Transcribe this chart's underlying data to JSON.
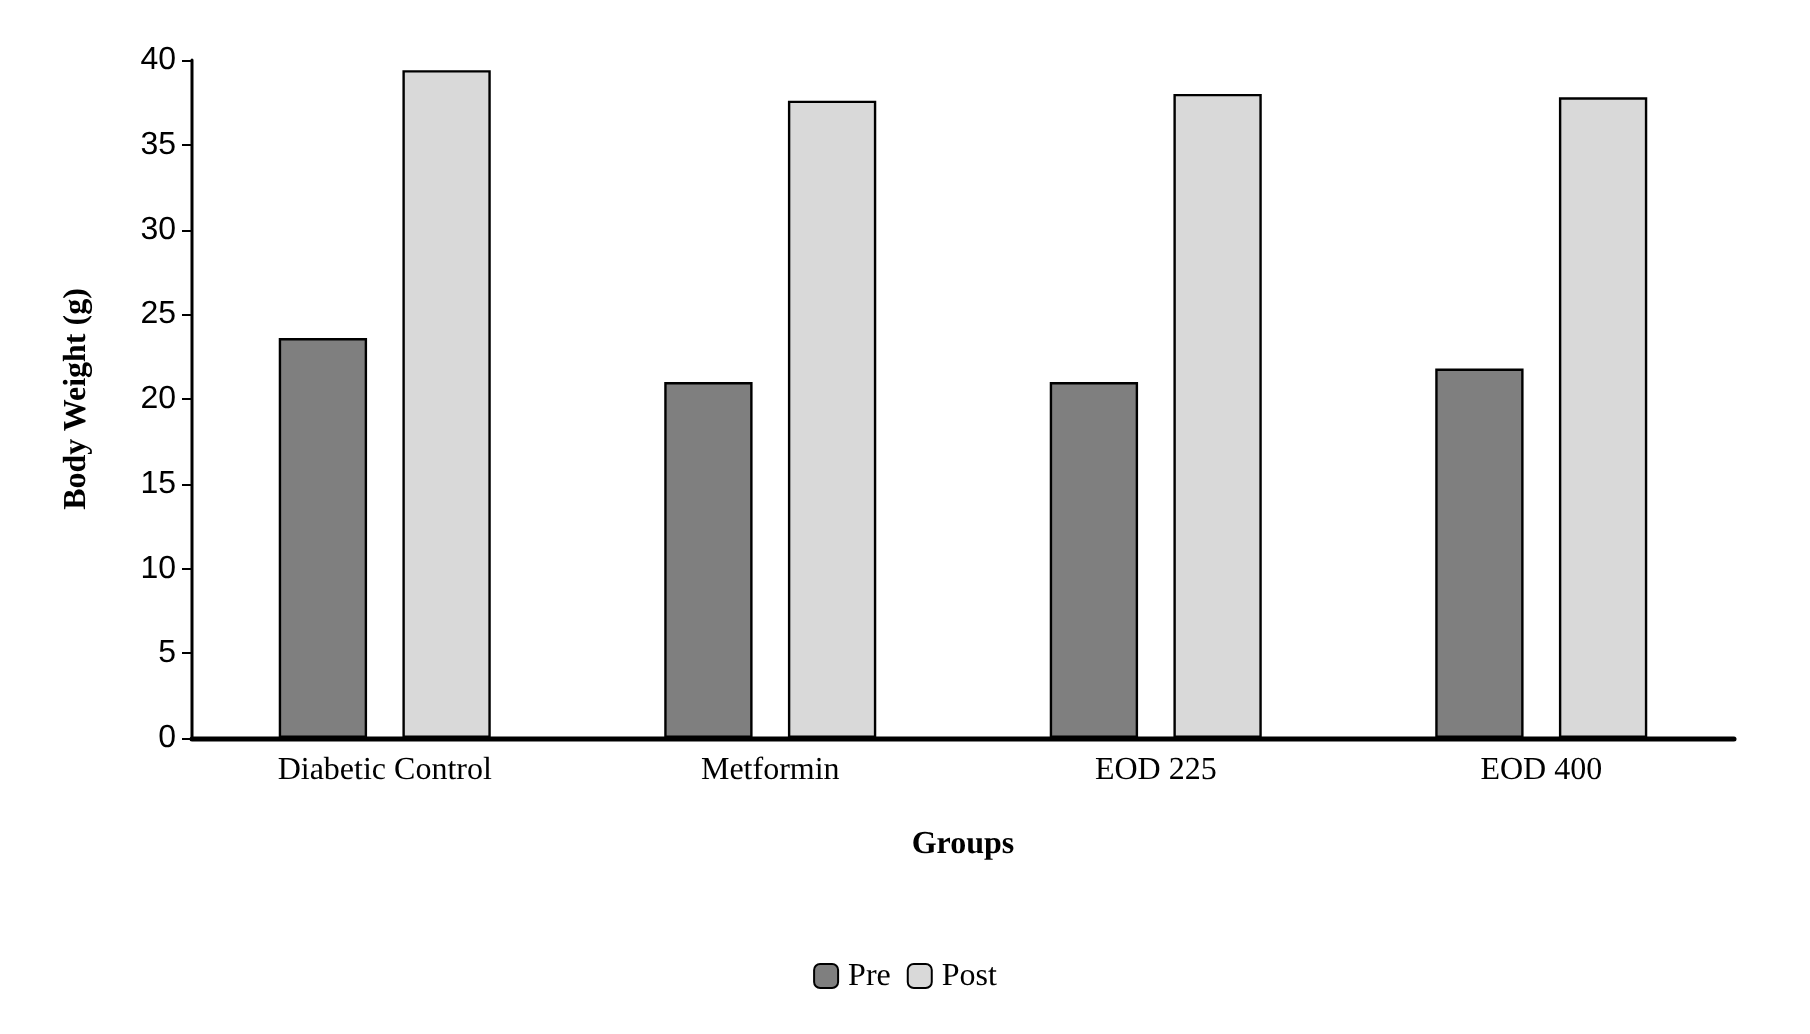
{
  "chart_data": {
    "type": "bar",
    "xlabel": "Groups",
    "ylabel": "Body Weight (g)",
    "categories": [
      "Diabetic Control",
      "Metformin",
      "EOD 225",
      "EOD 400"
    ],
    "series": [
      {
        "name": "Pre",
        "color": "#7f7f7f",
        "values": [
          23.6,
          21.0,
          21.0,
          21.8
        ]
      },
      {
        "name": "Post",
        "color": "#d9d9d9",
        "values": [
          39.4,
          37.6,
          38.0,
          37.8
        ]
      }
    ],
    "ylim": [
      0,
      40
    ],
    "yticks": [
      0,
      5,
      10,
      15,
      20,
      25,
      30,
      35,
      40
    ],
    "grid": false,
    "legend": "bottom"
  }
}
